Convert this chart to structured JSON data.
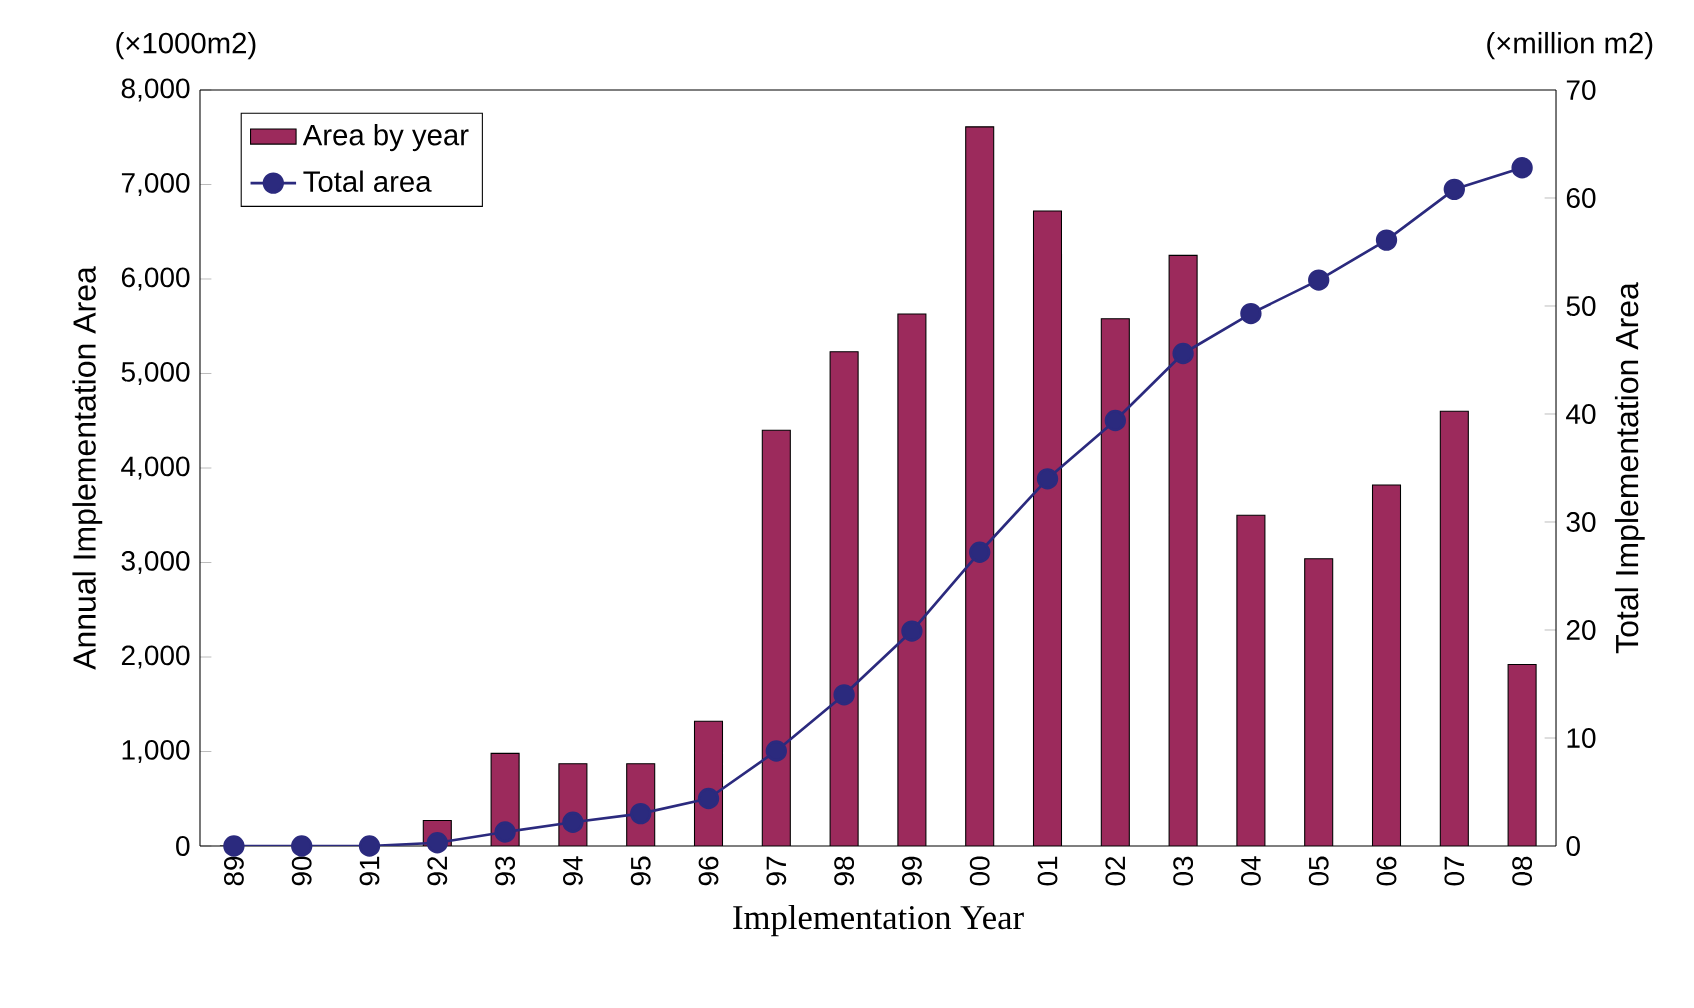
{
  "chart_data": {
    "type": "bar",
    "xlabel": "Implementation Year",
    "ylabel": "Annual Implementation Area",
    "y2label": "Total Implementation Area",
    "annotations": [
      "(×1000m2)",
      "(×million m2)"
    ],
    "categories": [
      "89",
      "90",
      "91",
      "92",
      "93",
      "94",
      "95",
      "96",
      "97",
      "98",
      "99",
      "00",
      "01",
      "02",
      "03",
      "04",
      "05",
      "06",
      "07",
      "08"
    ],
    "series": [
      {
        "name": "Area by year",
        "type": "bar",
        "color": "#9c2a5c",
        "values": [
          0,
          0,
          0,
          270,
          980,
          870,
          870,
          1320,
          4400,
          5230,
          5630,
          7610,
          6720,
          5580,
          6250,
          3500,
          3040,
          3820,
          4600,
          1920
        ]
      },
      {
        "name": "Total area",
        "type": "line",
        "axis": "y2",
        "color": "#2b2a7e",
        "values": [
          0,
          0,
          0,
          0.3,
          1.3,
          2.2,
          3.0,
          4.4,
          8.8,
          14.0,
          19.9,
          27.2,
          34.0,
          39.4,
          45.6,
          49.3,
          52.4,
          56.1,
          60.8,
          62.8
        ]
      }
    ],
    "ylim": [
      0,
      8000
    ],
    "yticks": [
      0,
      {
        "value": 1000,
        "label": "1,000"
      },
      {
        "value": 2000,
        "label": "2,000"
      },
      {
        "value": 3000,
        "label": "3,000"
      },
      {
        "value": 4000,
        "label": "4,000"
      },
      {
        "value": 5000,
        "label": "5,000"
      },
      {
        "value": 6000,
        "label": "6,000"
      },
      {
        "value": 7000,
        "label": "7,000"
      },
      {
        "value": 8000,
        "label": "8,000"
      }
    ],
    "y2lim": [
      0,
      70
    ],
    "y2ticks": [
      0,
      10,
      20,
      30,
      40,
      50,
      60,
      70
    ],
    "marker": "circle",
    "line_style": "solid",
    "legend": "top left",
    "grid": false
  }
}
